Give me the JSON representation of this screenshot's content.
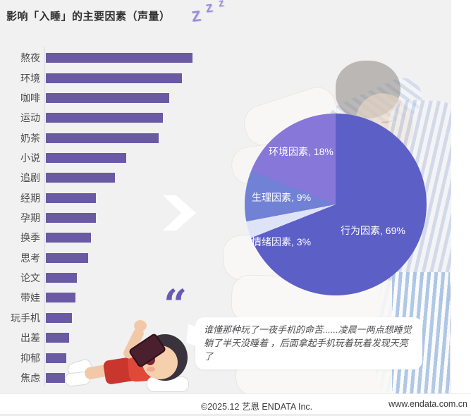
{
  "title": "影响「入睡」的主要因素（声量）",
  "decoration": {
    "z1": "Z",
    "z2": "Z",
    "z3": "Z"
  },
  "colors": {
    "panel_bg": "#f1f1f1",
    "bar": "#6a5aa4",
    "accent_purple": "#6a5ab4",
    "pie_behavior": "#5c5fc6",
    "pie_emotion": "#dfe3f7",
    "pie_physiology": "#7181d6",
    "pie_environment": "#8677d8"
  },
  "chart_data": [
    {
      "type": "bar",
      "orientation": "horizontal",
      "title": "影响「入睡」的主要因素（声量）",
      "categories": [
        "熬夜",
        "环境",
        "咖啡",
        "运动",
        "奶茶",
        "小说",
        "追剧",
        "经期",
        "孕期",
        "换季",
        "思考",
        "论文",
        "带娃",
        "玩手机",
        "出差",
        "抑郁",
        "焦虑"
      ],
      "values": [
        100,
        93,
        84,
        80,
        77,
        55,
        47,
        34,
        34,
        31,
        29,
        21,
        20,
        18,
        16,
        14,
        13
      ],
      "xlabel": "",
      "ylabel": "",
      "value_note": "relative 声量 (voice volume), no numeric axis shown; values estimated as % of longest bar",
      "xlim": [
        0,
        100
      ],
      "bar_color": "#6a5aa4",
      "grid": false
    },
    {
      "type": "pie",
      "start_angle_deg": 0,
      "direction": "clockwise",
      "slices": [
        {
          "label": "行为因素",
          "value_pct": 69,
          "display": "行为因素, 69%",
          "color": "#5c5fc6"
        },
        {
          "label": "情绪因素",
          "value_pct": 3,
          "display": "情绪因素, 3%",
          "color": "#dfe3f7"
        },
        {
          "label": "生理因素",
          "value_pct": 9,
          "display": "生理因素, 9%",
          "color": "#7181d6"
        },
        {
          "label": "环境因素",
          "value_pct": 18,
          "display": "环境因素, 18%",
          "color": "#8677d8"
        }
      ],
      "label_color": "#ffffff"
    }
  ],
  "quote": {
    "mark": "“",
    "text": "谁懂那种玩了一夜手机的命苦......凌晨一两点想睡觉 躺了半天没睡着 ，后面拿起手机玩着玩着发现天亮了"
  },
  "footer": {
    "copyright": "©2025.12  艺恩 ENDATA Inc.",
    "website": "www.endata.com.cn"
  }
}
